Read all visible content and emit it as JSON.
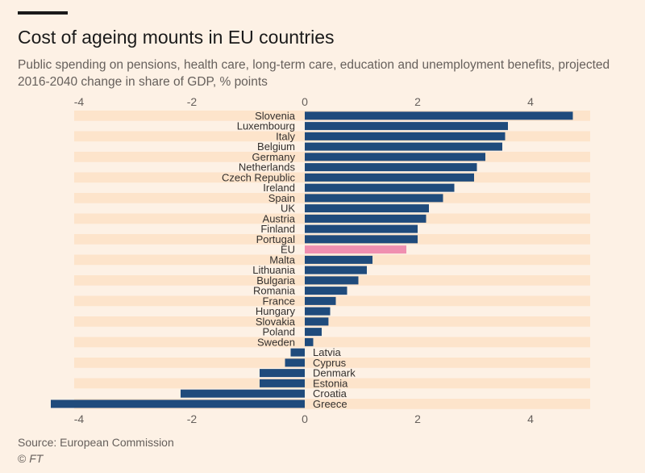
{
  "title": "Cost of ageing mounts in EU countries",
  "subtitle": "Public spending on pensions, health care, long-term care, education and unemployment benefits, projected 2016-2040 change in share of GDP, % points",
  "source": "Source: European Commission",
  "credit_symbol": "©",
  "credit_name": "FT",
  "colors": {
    "bar": "#1f4b7c",
    "highlight": "#f08fb0",
    "stripe": "#fde4cb",
    "background": "#fdf1e5"
  },
  "chart_data": {
    "type": "bar",
    "orientation": "horizontal",
    "title": "Cost of ageing mounts in EU countries",
    "subtitle": "Public spending on pensions, health care, long-term care, education and unemployment benefits, projected 2016-2040 change in share of GDP, % points",
    "categories": [
      "Slovenia",
      "Luxembourg",
      "Italy",
      "Belgium",
      "Germany",
      "Netherlands",
      "Czech Republic",
      "Ireland",
      "Spain",
      "UK",
      "Austria",
      "Finland",
      "Portugal",
      "EU",
      "Malta",
      "Lithuania",
      "Bulgaria",
      "Romania",
      "France",
      "Hungary",
      "Slovakia",
      "Poland",
      "Sweden",
      "Latvia",
      "Cyprus",
      "Denmark",
      "Estonia",
      "Croatia",
      "Greece"
    ],
    "values": [
      4.75,
      3.6,
      3.55,
      3.5,
      3.2,
      3.05,
      3.0,
      2.65,
      2.45,
      2.2,
      2.15,
      2.0,
      2.0,
      1.8,
      1.2,
      1.1,
      0.95,
      0.75,
      0.55,
      0.45,
      0.42,
      0.3,
      0.15,
      -0.25,
      -0.35,
      -0.8,
      -0.8,
      -2.2,
      -4.5
    ],
    "highlight": "EU",
    "xlim": [
      -4.1,
      5.1
    ],
    "xticks": [
      -4,
      -2,
      0,
      2,
      4
    ],
    "xtick_labels": [
      "-4",
      "-2",
      "0",
      "2",
      "4"
    ],
    "axis_position": "top-and-bottom",
    "grid": false,
    "row_stripes": true
  }
}
